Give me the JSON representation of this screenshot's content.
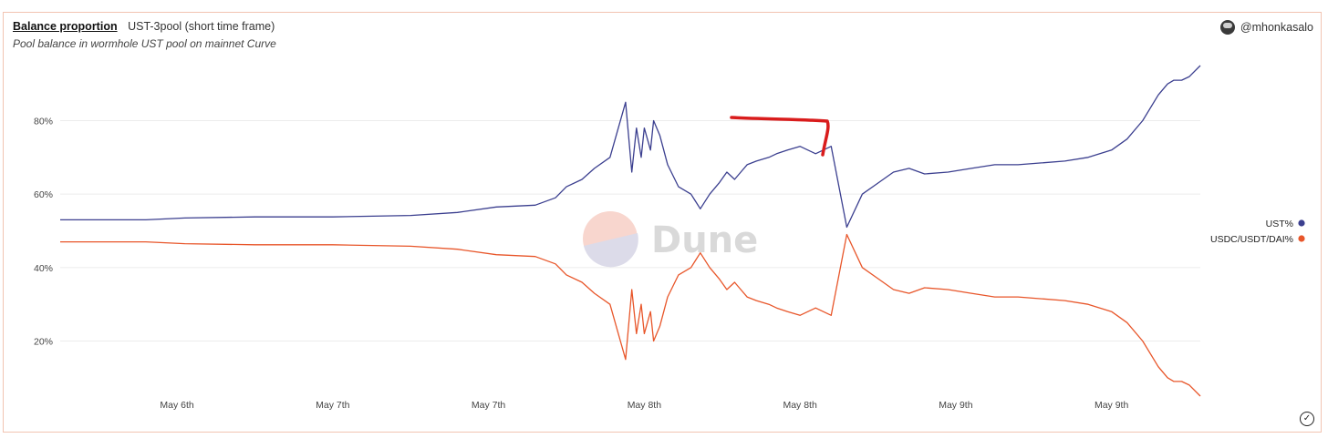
{
  "header": {
    "title": "Balance proportion",
    "subtitle": "UST-3pool (short time frame)",
    "description": "Pool balance in wormhole UST pool on mainnet Curve",
    "author": "@mhonkasalo"
  },
  "watermark": "Dune",
  "colors": {
    "ust": "#3b3f8f",
    "usdc": "#e8562a",
    "annotation": "#d91c1c",
    "grid": "#ececec"
  },
  "chart_data": {
    "type": "line",
    "y_ticks": [
      "80%",
      "60%",
      "40%",
      "20%"
    ],
    "y_tick_values": [
      80,
      60,
      40,
      20
    ],
    "ylim": [
      5,
      95
    ],
    "x_ticks": [
      "May 6th",
      "May 7th",
      "May 7th",
      "May 8th",
      "May 8th",
      "May 9th",
      "May 9th"
    ],
    "x_tick_positions": [
      0.5,
      1.5,
      2.5,
      3.5,
      4.5,
      5.5,
      6.5
    ],
    "xlim": [
      -0.25,
      7.07
    ],
    "legend_position": "right",
    "grid": true,
    "series": [
      {
        "name": "UST%",
        "color": "#3b3f8f",
        "x": [
          -0.25,
          0.3,
          0.55,
          1.0,
          1.5,
          2.0,
          2.3,
          2.55,
          2.8,
          2.93,
          3.0,
          3.1,
          3.18,
          3.28,
          3.38,
          3.42,
          3.45,
          3.48,
          3.5,
          3.54,
          3.56,
          3.6,
          3.65,
          3.72,
          3.8,
          3.86,
          3.92,
          3.98,
          4.03,
          4.08,
          4.12,
          4.16,
          4.22,
          4.3,
          4.35,
          4.42,
          4.5,
          4.6,
          4.7,
          4.8,
          4.9,
          5.0,
          5.1,
          5.2,
          5.3,
          5.45,
          5.6,
          5.75,
          5.9,
          6.05,
          6.2,
          6.35,
          6.5,
          6.6,
          6.7,
          6.8,
          6.86,
          6.9,
          6.95,
          7.0,
          7.07
        ],
        "values": [
          53,
          53,
          53.5,
          53.8,
          53.8,
          54.2,
          55,
          56.5,
          57,
          59,
          62,
          64,
          67,
          70,
          85,
          66,
          78,
          70,
          78,
          72,
          80,
          76,
          68,
          62,
          60,
          56,
          60,
          63,
          66,
          64,
          66,
          68,
          69,
          70,
          71,
          72,
          73,
          71,
          73,
          51,
          60,
          63,
          66,
          67,
          65.5,
          66,
          67,
          68,
          68,
          68.5,
          69,
          70,
          72,
          75,
          80,
          87,
          90,
          91,
          91,
          92,
          95
        ]
      },
      {
        "name": "USDC/USDT/DAI%",
        "color": "#e8562a",
        "x": [
          -0.25,
          0.3,
          0.55,
          1.0,
          1.5,
          2.0,
          2.3,
          2.55,
          2.8,
          2.93,
          3.0,
          3.1,
          3.18,
          3.28,
          3.38,
          3.42,
          3.45,
          3.48,
          3.5,
          3.54,
          3.56,
          3.6,
          3.65,
          3.72,
          3.8,
          3.86,
          3.92,
          3.98,
          4.03,
          4.08,
          4.12,
          4.16,
          4.22,
          4.3,
          4.35,
          4.42,
          4.5,
          4.6,
          4.7,
          4.8,
          4.9,
          5.0,
          5.1,
          5.2,
          5.3,
          5.45,
          5.6,
          5.75,
          5.9,
          6.05,
          6.2,
          6.35,
          6.5,
          6.6,
          6.7,
          6.8,
          6.86,
          6.9,
          6.95,
          7.0,
          7.07
        ],
        "values": [
          47,
          47,
          46.5,
          46.2,
          46.2,
          45.8,
          45,
          43.5,
          43,
          41,
          38,
          36,
          33,
          30,
          15,
          34,
          22,
          30,
          22,
          28,
          20,
          24,
          32,
          38,
          40,
          44,
          40,
          37,
          34,
          36,
          34,
          32,
          31,
          30,
          29,
          28,
          27,
          29,
          27,
          49,
          40,
          37,
          34,
          33,
          34.5,
          34,
          33,
          32,
          32,
          31.5,
          31,
          30,
          28,
          25,
          20,
          13,
          10,
          9,
          9,
          8,
          5
        ]
      }
    ]
  }
}
